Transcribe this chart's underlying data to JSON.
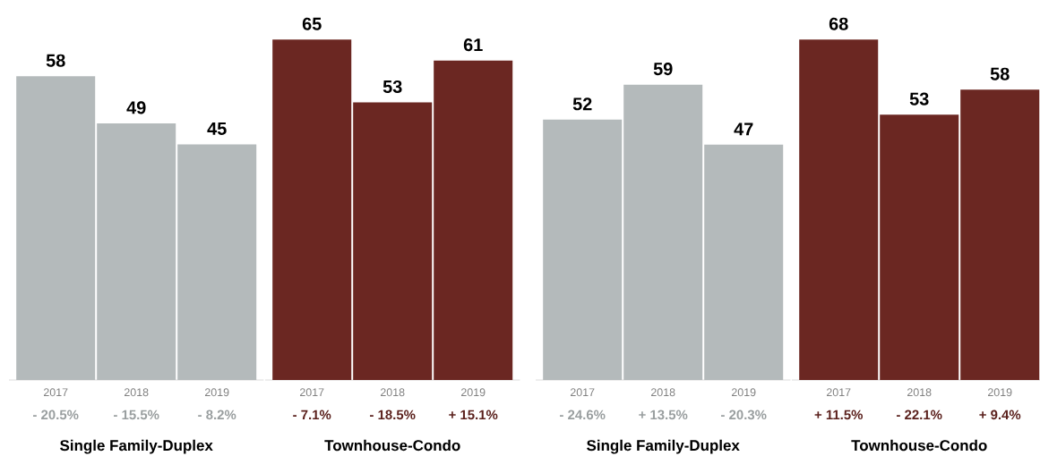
{
  "chart_data": [
    {
      "type": "bar",
      "categories": [
        "2017",
        "2018",
        "2019"
      ],
      "values": [
        58,
        49,
        45
      ],
      "color": "#b4babb",
      "xlabel": "Single Family-Duplex",
      "data_labels": true,
      "annotations": [
        "- 20.5%",
        "- 15.5%",
        "- 8.2%"
      ]
    },
    {
      "type": "bar",
      "categories": [
        "2017",
        "2018",
        "2019"
      ],
      "values": [
        65,
        53,
        61
      ],
      "color": "#6b2722",
      "xlabel": "Townhouse-Condo",
      "data_labels": true,
      "annotations": [
        "- 7.1%",
        "- 18.5%",
        "+ 15.1%"
      ]
    },
    {
      "type": "bar",
      "categories": [
        "2017",
        "2018",
        "2019"
      ],
      "values": [
        52,
        59,
        47
      ],
      "color": "#b4babb",
      "xlabel": "Single Family-Duplex",
      "data_labels": true,
      "annotations": [
        "- 24.6%",
        "+ 13.5%",
        "- 20.3%"
      ]
    },
    {
      "type": "bar",
      "categories": [
        "2017",
        "2018",
        "2019"
      ],
      "values": [
        68,
        53,
        58
      ],
      "color": "#6b2722",
      "xlabel": "Townhouse-Condo",
      "data_labels": true,
      "annotations": [
        "+ 11.5%",
        "- 22.1%",
        "+ 9.4%"
      ]
    }
  ]
}
